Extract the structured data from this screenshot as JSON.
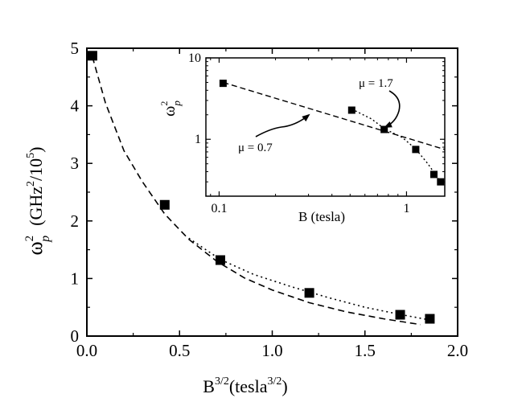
{
  "chart_data": [
    {
      "type": "scatter",
      "xlabel": {
        "base": "B",
        "sup": "3/2",
        "mid": "(tesla",
        "sup2": "3/2",
        "end": ")"
      },
      "ylabel": {
        "base": "ω",
        "sup": "2",
        "sub": "p",
        "units_pre": "(GHz",
        "units_sup": "2",
        "units_mid": "/10",
        "units_sup2": "5",
        "units_end": ")"
      },
      "xlim": [
        0.0,
        2.0
      ],
      "ylim": [
        0,
        5
      ],
      "xticks": [
        0.0,
        0.5,
        1.0,
        1.5,
        2.0
      ],
      "xtick_labels": [
        "0.0",
        "0.5",
        "1.0",
        "1.5",
        "2.0"
      ],
      "yticks": [
        0,
        1,
        2,
        3,
        4,
        5
      ],
      "ytick_labels": [
        "0",
        "1",
        "2",
        "3",
        "4",
        "5"
      ],
      "grid": false,
      "points": {
        "x": [
          0.03,
          0.42,
          0.72,
          1.2,
          1.69,
          1.85
        ],
        "y": [
          4.87,
          2.28,
          1.32,
          0.75,
          0.37,
          0.3
        ]
      },
      "fits": [
        {
          "style": "dashed",
          "x": [
            0.03,
            0.1,
            0.2,
            0.3,
            0.42,
            0.55,
            0.7,
            0.85,
            1.0,
            1.2,
            1.4,
            1.6,
            1.8
          ],
          "y": [
            4.85,
            4.05,
            3.22,
            2.68,
            2.12,
            1.68,
            1.3,
            1.01,
            0.8,
            0.58,
            0.42,
            0.3,
            0.2
          ]
        },
        {
          "style": "dotted",
          "x": [
            0.55,
            0.72,
            0.9,
            1.1,
            1.3,
            1.5,
            1.7,
            1.85
          ],
          "y": [
            1.7,
            1.33,
            1.07,
            0.86,
            0.67,
            0.5,
            0.37,
            0.28
          ]
        }
      ]
    },
    {
      "type": "scatter",
      "xlabel": "B (tesla)",
      "ylabel": {
        "base": "ω",
        "sup": "2",
        "sub": "p"
      },
      "xscale": "log",
      "yscale": "log",
      "xlim": [
        0.085,
        1.6
      ],
      "ylim": [
        0.2,
        10
      ],
      "xtick_labels": [
        "0.1",
        "1"
      ],
      "ytick_labels": [
        "1",
        "10"
      ],
      "points": {
        "x": [
          0.105,
          0.51,
          0.76,
          1.12,
          1.4,
          1.52
        ],
        "y": [
          4.87,
          2.28,
          1.32,
          0.75,
          0.37,
          0.3
        ]
      },
      "fits": [
        {
          "style": "dashed",
          "slope": -0.7,
          "x": [
            0.105,
            1.6
          ],
          "y": [
            5.0,
            0.75
          ]
        },
        {
          "style": "dotted",
          "x": [
            0.51,
            0.65,
            0.76,
            0.95,
            1.12,
            1.3,
            1.52
          ],
          "y": [
            2.35,
            1.78,
            1.35,
            1.05,
            0.76,
            0.5,
            0.3
          ]
        }
      ],
      "annotations": [
        {
          "text": "μ = 0.7"
        },
        {
          "text": "μ = 1.7"
        }
      ]
    }
  ]
}
